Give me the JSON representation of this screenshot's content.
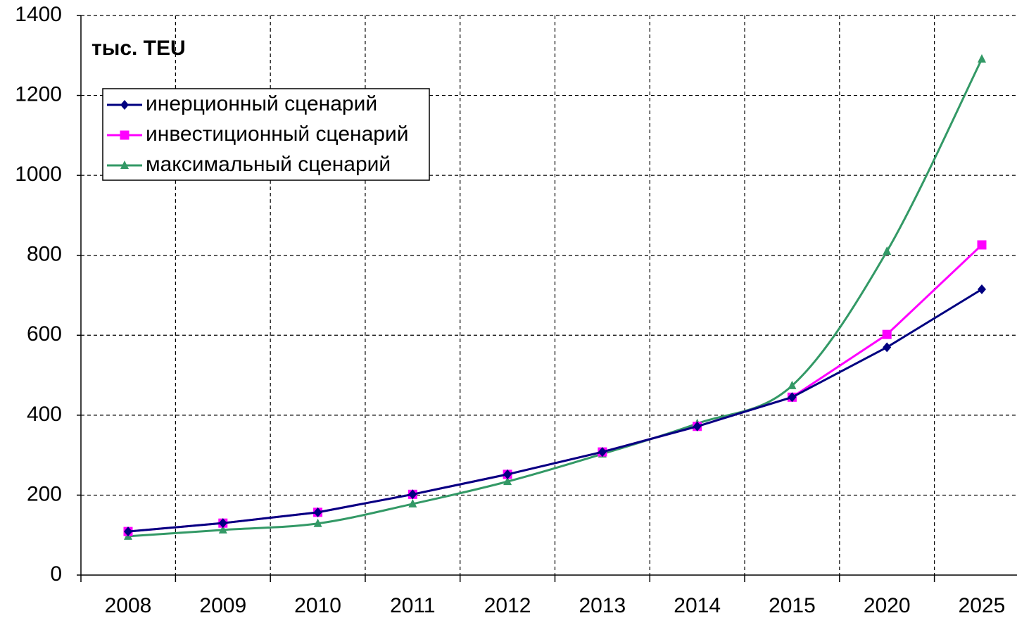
{
  "chart_data": {
    "type": "line",
    "annotation": "тыс. TEU",
    "categories": [
      "2008",
      "2009",
      "2010",
      "2011",
      "2012",
      "2013",
      "2014",
      "2015",
      "2020",
      "2025"
    ],
    "series": [
      {
        "name": "инерционный сценарий",
        "color": "#000080",
        "marker": "diamond",
        "smooth": false,
        "values": [
          109,
          130,
          157,
          202,
          252,
          308,
          372,
          445,
          570,
          715
        ]
      },
      {
        "name": "инвестиционный сценарий",
        "color": "#ff00ff",
        "marker": "square",
        "smooth": false,
        "values": [
          109,
          130,
          157,
          202,
          252,
          308,
          372,
          445,
          602,
          826
        ]
      },
      {
        "name": "максимальный сценарий",
        "color": "#339966",
        "marker": "triangle",
        "smooth": true,
        "values": [
          97,
          113,
          129,
          178,
          234,
          303,
          379,
          474,
          810,
          1291
        ]
      }
    ],
    "ylim": [
      0,
      1400
    ],
    "yticks": [
      0,
      200,
      400,
      600,
      800,
      1000,
      1200,
      1400
    ],
    "grid": true,
    "legend": "top-left"
  }
}
